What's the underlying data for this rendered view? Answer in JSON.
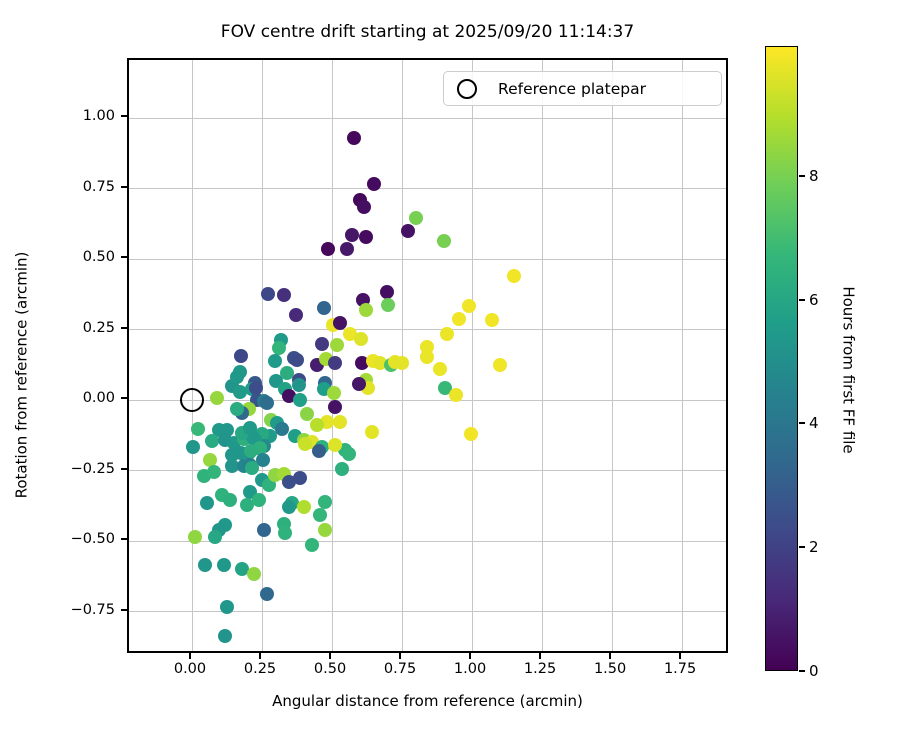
{
  "title": "FOV centre drift starting at 2025/09/20 11:14:37",
  "legend": {
    "label": "Reference platepar",
    "marker": "open-circle"
  },
  "colorbar": {
    "label": "Hours from first FF file",
    "vmin": 0,
    "vmax": 10.1,
    "ticks": [
      0,
      2,
      4,
      6,
      8
    ],
    "colormap": "viridis"
  },
  "colors": {
    "viridis_stops": [
      "#440154",
      "#482878",
      "#3e4989",
      "#31688e",
      "#26828e",
      "#1f9e89",
      "#35b779",
      "#6ece58",
      "#b5de2b",
      "#fde725"
    ],
    "grid": "#c6c6c6",
    "spine": "#000000",
    "legend_border": "#cccccc"
  },
  "chart_data": {
    "type": "scatter",
    "title": "FOV centre drift starting at 2025/09/20 11:14:37",
    "xlabel": "Angular distance from reference (arcmin)",
    "ylabel": "Rotation from reference (arcmin)",
    "xlim": [
      -0.225,
      1.921
    ],
    "ylim": [
      -0.904,
      1.206
    ],
    "xticks": [
      0.0,
      0.25,
      0.5,
      0.75,
      1.0,
      1.25,
      1.5,
      1.75
    ],
    "xtick_labels": [
      "0.00",
      "0.25",
      "0.50",
      "0.75",
      "1.00",
      "1.25",
      "1.50",
      "1.75"
    ],
    "yticks": [
      -0.75,
      -0.5,
      -0.25,
      0.0,
      0.25,
      0.5,
      0.75,
      1.0
    ],
    "ytick_labels": [
      "−0.75",
      "−0.50",
      "−0.25",
      "0.00",
      "0.25",
      "0.50",
      "0.75",
      "1.00"
    ],
    "grid": true,
    "legend_position": "upper right",
    "reference_point": {
      "x": 0.0,
      "y": 0.0
    },
    "color_value_unit": "hours",
    "points": [
      [
        0.58,
        0.93,
        0.2
      ],
      [
        0.65,
        0.765,
        0.3
      ],
      [
        0.6,
        0.71,
        0.2
      ],
      [
        0.615,
        0.683,
        0.4
      ],
      [
        0.57,
        0.585,
        0.6
      ],
      [
        0.62,
        0.58,
        0.3
      ],
      [
        0.485,
        0.535,
        0.2
      ],
      [
        0.555,
        0.535,
        0.7
      ],
      [
        0.77,
        0.6,
        0.5
      ],
      [
        0.8,
        0.645,
        8.0
      ],
      [
        0.9,
        0.565,
        8.0
      ],
      [
        1.15,
        0.44,
        9.9
      ],
      [
        0.27,
        0.375,
        2.2
      ],
      [
        0.33,
        0.372,
        1.4
      ],
      [
        0.37,
        0.3,
        1.2
      ],
      [
        0.47,
        0.325,
        3.3
      ],
      [
        0.61,
        0.355,
        0.5
      ],
      [
        0.62,
        0.318,
        8.6
      ],
      [
        0.695,
        0.385,
        0.4
      ],
      [
        0.7,
        0.338,
        7.8
      ],
      [
        0.99,
        0.335,
        9.9
      ],
      [
        0.952,
        0.289,
        9.9
      ],
      [
        1.07,
        0.285,
        9.9
      ],
      [
        0.503,
        0.265,
        9.8
      ],
      [
        0.527,
        0.273,
        0.5
      ],
      [
        0.565,
        0.234,
        9.8
      ],
      [
        0.518,
        0.197,
        8.6
      ],
      [
        0.464,
        0.198,
        1.7
      ],
      [
        0.604,
        0.215,
        9.6
      ],
      [
        0.84,
        0.19,
        9.8
      ],
      [
        0.91,
        0.236,
        9.8
      ],
      [
        0.175,
        0.155,
        2.2
      ],
      [
        0.365,
        0.149,
        2.5
      ],
      [
        0.375,
        0.143,
        2.3
      ],
      [
        0.319,
        0.214,
        5.5
      ],
      [
        0.312,
        0.183,
        6.6
      ],
      [
        0.295,
        0.14,
        5.5
      ],
      [
        0.446,
        0.126,
        0.8
      ],
      [
        0.478,
        0.145,
        8.7
      ],
      [
        0.512,
        0.133,
        1.8
      ],
      [
        0.607,
        0.133,
        0.3
      ],
      [
        0.645,
        0.14,
        9.8
      ],
      [
        0.672,
        0.13,
        9.7
      ],
      [
        0.712,
        0.125,
        7.2
      ],
      [
        0.725,
        0.136,
        9.7
      ],
      [
        0.75,
        0.13,
        9.7
      ],
      [
        0.84,
        0.153,
        9.8
      ],
      [
        0.887,
        0.109,
        9.8
      ],
      [
        1.1,
        0.124,
        9.9
      ],
      [
        0.173,
        0.1,
        5.4
      ],
      [
        0.3,
        0.068,
        5.3
      ],
      [
        0.34,
        0.096,
        6.3
      ],
      [
        0.381,
        0.07,
        2.3
      ],
      [
        0.381,
        0.053,
        5.2
      ],
      [
        0.476,
        0.06,
        3.3
      ],
      [
        0.473,
        0.038,
        5.6
      ],
      [
        0.62,
        0.07,
        8.7
      ],
      [
        0.628,
        0.042,
        9.7
      ],
      [
        0.905,
        0.044,
        6.8
      ],
      [
        0.943,
        0.018,
        9.8
      ],
      [
        0.595,
        0.056,
        0.6
      ],
      [
        0.506,
        0.024,
        8.6
      ],
      [
        0.143,
        0.05,
        5.2
      ],
      [
        0.161,
        0.082,
        5.4
      ],
      [
        0.225,
        0.06,
        2.8
      ],
      [
        0.088,
        0.008,
        8.5
      ],
      [
        0.17,
        0.028,
        5.5
      ],
      [
        0.214,
        0.038,
        5.6
      ],
      [
        0.228,
        0.042,
        2.4
      ],
      [
        0.232,
        0.002,
        2.6
      ],
      [
        0.258,
        -0.002,
        4.2
      ],
      [
        0.268,
        -0.012,
        3.6
      ],
      [
        0.333,
        0.04,
        5.8
      ],
      [
        0.345,
        0.016,
        0.4
      ],
      [
        0.387,
        0.002,
        5.7
      ],
      [
        0.205,
        -0.033,
        8.5
      ],
      [
        0.179,
        -0.046,
        3.4
      ],
      [
        0.16,
        -0.033,
        6.2
      ],
      [
        0.283,
        -0.072,
        8.2
      ],
      [
        0.304,
        -0.081,
        5.5
      ],
      [
        0.41,
        -0.051,
        8.3
      ],
      [
        0.511,
        -0.024,
        0.5
      ],
      [
        0.482,
        -0.079,
        9.7
      ],
      [
        0.53,
        -0.079,
        9.7
      ],
      [
        0.641,
        -0.112,
        9.7
      ],
      [
        0.446,
        -0.087,
        9.0
      ],
      [
        0.321,
        -0.104,
        4.1
      ],
      [
        0.28,
        -0.127,
        5.5
      ],
      [
        0.25,
        -0.122,
        6.1
      ],
      [
        0.256,
        -0.163,
        4.8
      ],
      [
        0.369,
        -0.128,
        5.6
      ],
      [
        0.399,
        -0.141,
        8.4
      ],
      [
        0.429,
        -0.147,
        9.6
      ],
      [
        0.405,
        -0.155,
        9.3
      ],
      [
        0.464,
        -0.167,
        6.4
      ],
      [
        0.452,
        -0.182,
        3.0
      ],
      [
        0.548,
        -0.177,
        6.5
      ],
      [
        0.536,
        -0.245,
        6.4
      ],
      [
        0.511,
        -0.16,
        9.6
      ],
      [
        0.561,
        -0.19,
        6.6
      ],
      [
        0.996,
        -0.122,
        9.9
      ],
      [
        0.023,
        -0.104,
        6.8
      ],
      [
        0.095,
        -0.105,
        5.4
      ],
      [
        0.125,
        -0.105,
        5.3
      ],
      [
        0.07,
        -0.146,
        6.2
      ],
      [
        0.118,
        -0.141,
        5.2
      ],
      [
        0.005,
        -0.165,
        5.3
      ],
      [
        0.149,
        -0.153,
        5.4
      ],
      [
        0.185,
        -0.137,
        6.4
      ],
      [
        0.214,
        -0.128,
        5.5
      ],
      [
        0.177,
        -0.117,
        6.0
      ],
      [
        0.207,
        -0.099,
        5.5
      ],
      [
        0.225,
        -0.141,
        5.4
      ],
      [
        0.237,
        -0.171,
        5.3
      ],
      [
        0.244,
        -0.171,
        6.4
      ],
      [
        0.202,
        -0.189,
        5.2
      ],
      [
        0.175,
        -0.189,
        5.3
      ],
      [
        0.212,
        -0.182,
        6.3
      ],
      [
        0.064,
        -0.213,
        8.5
      ],
      [
        0.143,
        -0.235,
        5.2
      ],
      [
        0.186,
        -0.235,
        4.6
      ],
      [
        0.208,
        -0.23,
        4.4
      ],
      [
        0.255,
        -0.212,
        4.5
      ],
      [
        0.142,
        -0.194,
        5.3
      ],
      [
        0.214,
        -0.242,
        6.2
      ],
      [
        0.042,
        -0.27,
        6.5
      ],
      [
        0.077,
        -0.254,
        6.6
      ],
      [
        0.107,
        -0.336,
        6.5
      ],
      [
        0.137,
        -0.354,
        6.4
      ],
      [
        0.054,
        -0.366,
        5.3
      ],
      [
        0.119,
        -0.443,
        5.4
      ],
      [
        0.095,
        -0.461,
        5.3
      ],
      [
        0.012,
        -0.485,
        8.4
      ],
      [
        0.083,
        -0.485,
        6.0
      ],
      [
        0.208,
        -0.325,
        5.5
      ],
      [
        0.196,
        -0.372,
        6.4
      ],
      [
        0.238,
        -0.354,
        6.5
      ],
      [
        0.25,
        -0.283,
        5.4
      ],
      [
        0.274,
        -0.301,
        6.5
      ],
      [
        0.298,
        -0.265,
        8.4
      ],
      [
        0.327,
        -0.263,
        8.7
      ],
      [
        0.345,
        -0.289,
        2.5
      ],
      [
        0.387,
        -0.277,
        2.4
      ],
      [
        0.357,
        -0.366,
        6.0
      ],
      [
        0.345,
        -0.378,
        5.4
      ],
      [
        0.399,
        -0.378,
        8.9
      ],
      [
        0.476,
        -0.36,
        6.6
      ],
      [
        0.458,
        -0.408,
        6.7
      ],
      [
        0.476,
        -0.461,
        8.5
      ],
      [
        0.256,
        -0.461,
        3.3
      ],
      [
        0.327,
        -0.438,
        6.4
      ],
      [
        0.333,
        -0.473,
        6.5
      ],
      [
        0.429,
        -0.514,
        6.6
      ],
      [
        0.048,
        -0.585,
        5.3
      ],
      [
        0.113,
        -0.585,
        5.4
      ],
      [
        0.179,
        -0.6,
        5.9
      ],
      [
        0.22,
        -0.615,
        8.4
      ],
      [
        0.268,
        -0.687,
        3.4
      ],
      [
        0.125,
        -0.734,
        5.3
      ],
      [
        0.119,
        -0.835,
        5.2
      ]
    ]
  }
}
